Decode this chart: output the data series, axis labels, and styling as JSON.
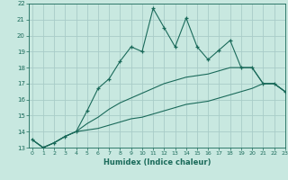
{
  "xlabel": "Humidex (Indice chaleur)",
  "background_color": "#c8e8e0",
  "grid_color": "#a8ccc8",
  "line_color": "#1a6a5a",
  "x": [
    0,
    1,
    2,
    3,
    4,
    5,
    6,
    7,
    8,
    9,
    10,
    11,
    12,
    13,
    14,
    15,
    16,
    17,
    18,
    19,
    20,
    21,
    22,
    23
  ],
  "y_main": [
    13.5,
    13.0,
    13.3,
    13.7,
    14.0,
    15.3,
    16.7,
    17.3,
    18.4,
    19.3,
    19.0,
    21.7,
    20.5,
    19.3,
    21.1,
    19.3,
    18.5,
    19.1,
    19.7,
    18.0,
    18.0,
    17.0,
    17.0,
    16.5
  ],
  "y_upper": [
    13.5,
    13.0,
    13.3,
    13.7,
    14.0,
    14.5,
    14.9,
    15.4,
    15.8,
    16.1,
    16.4,
    16.7,
    17.0,
    17.2,
    17.4,
    17.5,
    17.6,
    17.8,
    18.0,
    18.0,
    18.0,
    17.0,
    17.0,
    16.5
  ],
  "y_lower": [
    13.5,
    13.0,
    13.3,
    13.7,
    14.0,
    14.1,
    14.2,
    14.4,
    14.6,
    14.8,
    14.9,
    15.1,
    15.3,
    15.5,
    15.7,
    15.8,
    15.9,
    16.1,
    16.3,
    16.5,
    16.7,
    17.0,
    17.0,
    16.5
  ],
  "ylim": [
    13,
    22
  ],
  "xlim": [
    -0.3,
    23
  ],
  "yticks": [
    13,
    14,
    15,
    16,
    17,
    18,
    19,
    20,
    21,
    22
  ],
  "xticks": [
    0,
    1,
    2,
    3,
    4,
    5,
    6,
    7,
    8,
    9,
    10,
    11,
    12,
    13,
    14,
    15,
    16,
    17,
    18,
    19,
    20,
    21,
    22,
    23
  ],
  "tick_fontsize": 5.0,
  "xlabel_fontsize": 6.0
}
